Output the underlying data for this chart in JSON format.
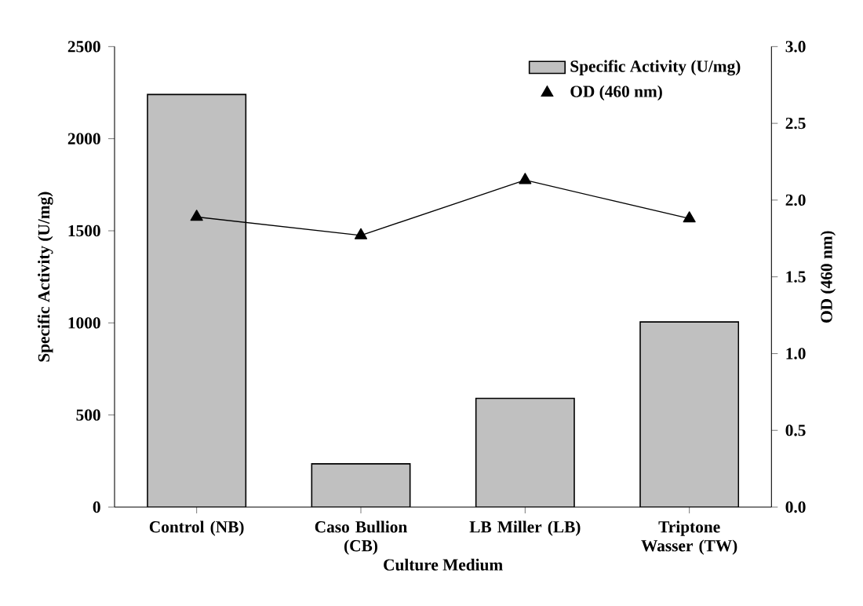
{
  "chart_data": {
    "type": "bar",
    "xlabel": "Culture Medium",
    "ylabel": "Specific Activity (U/mg)",
    "y2label": "OD (460 nm)",
    "categories": [
      "Control (NB)",
      "Caso Bullion (CB)",
      "LB Miller (LB)",
      "Triptone Wasser (TW)"
    ],
    "series": [
      {
        "name": "Specific Activity (U/mg)",
        "color": "#c0c0c0",
        "values": [
          2240,
          235,
          590,
          1005
        ]
      },
      {
        "name": "OD (460 nm)",
        "type": "line",
        "axis": "y2",
        "color": "#000000",
        "marker": "triangle",
        "values": [
          1.89,
          1.77,
          2.13,
          1.88
        ]
      }
    ],
    "ylim": [
      0,
      2500
    ],
    "yticks": [
      0,
      500,
      1000,
      1500,
      2000,
      2500
    ],
    "y2lim": [
      0,
      3.0
    ],
    "y2ticks": [
      {
        "value": 0,
        "label": "0.0"
      },
      {
        "value": 0.5,
        "label": "0.5"
      },
      {
        "value": 1.0,
        "label": "1.0"
      },
      {
        "value": 1.5,
        "label": "1.5"
      },
      {
        "value": 2.0,
        "label": "2.0"
      },
      {
        "value": 2.5,
        "label": "2.5"
      },
      {
        "value": 3.0,
        "label": "3.0"
      }
    ],
    "legend": "top right"
  }
}
